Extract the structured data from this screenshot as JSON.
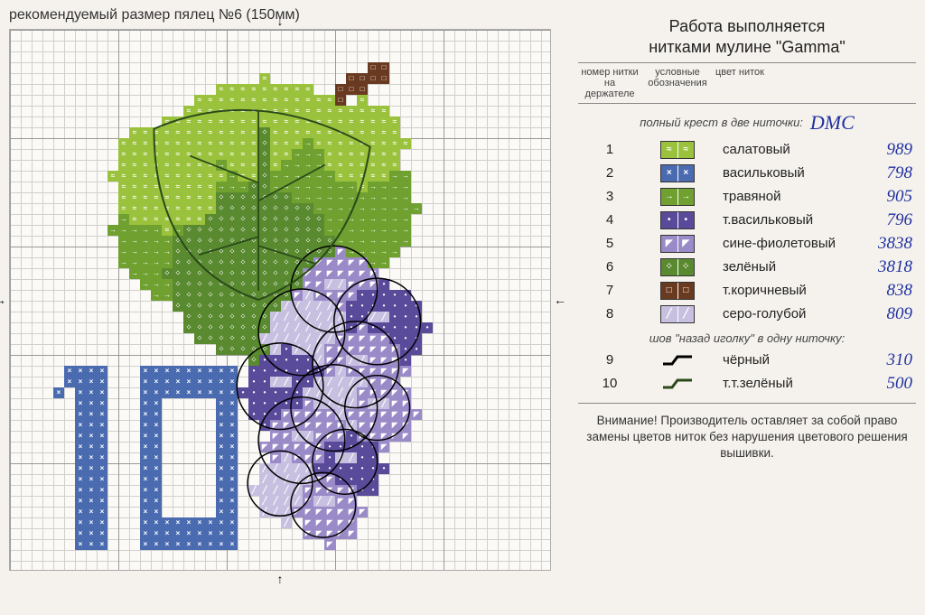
{
  "topLabel": "рекомендуемый размер пялец №6 (150мм)",
  "rightTitle1": "Работа выполняется",
  "rightTitle2": "нитками мулине \"Gamma\"",
  "headers": {
    "num": "номер нитки на держателе",
    "sym": "условные обозначения",
    "name": "цвет ниток"
  },
  "dmcLabel": "DMC",
  "section1": "полный крест в две ниточки:",
  "section2": "шов \"назад иголку\" в одну ниточку:",
  "warning": "Внимание! Производитель оставляет за собой право замены цветов ниток без нарушения цветового решения вышивки.",
  "colors": [
    {
      "n": "1",
      "sym": "≈",
      "bg": "#9bc23c",
      "name": "салатовый",
      "dmc": "989"
    },
    {
      "n": "2",
      "sym": "×",
      "bg": "#4a6bb0",
      "name": "васильковый",
      "dmc": "798"
    },
    {
      "n": "3",
      "sym": "→",
      "bg": "#6fa030",
      "name": "травяной",
      "dmc": "905"
    },
    {
      "n": "4",
      "sym": "•",
      "bg": "#5a4a9a",
      "name": "т.васильковый",
      "dmc": "796"
    },
    {
      "n": "5",
      "sym": "◤",
      "bg": "#9a8ac8",
      "name": "сине-фиолетовый",
      "dmc": "3838"
    },
    {
      "n": "6",
      "sym": "⁘",
      "bg": "#5a8a30",
      "name": "зелёный",
      "dmc": "3818"
    },
    {
      "n": "7",
      "sym": "□",
      "bg": "#6a3a20",
      "name": "т.коричневый",
      "dmc": "838"
    },
    {
      "n": "8",
      "sym": "╱",
      "bg": "#c8c0e0",
      "name": "серо-голубой",
      "dmc": "809"
    }
  ],
  "backstitch": [
    {
      "n": "9",
      "color": "#000000",
      "name": "чёрный",
      "dmc": "310"
    },
    {
      "n": "10",
      "color": "#2a4a1a",
      "name": "т.т.зелёный",
      "dmc": "500"
    }
  ],
  "chart": {
    "gridSize": 50,
    "cellPx": 12,
    "arrowTop": "↓",
    "arrowBottom": "↑",
    "arrowLeft": "→",
    "arrowRight": "←"
  }
}
